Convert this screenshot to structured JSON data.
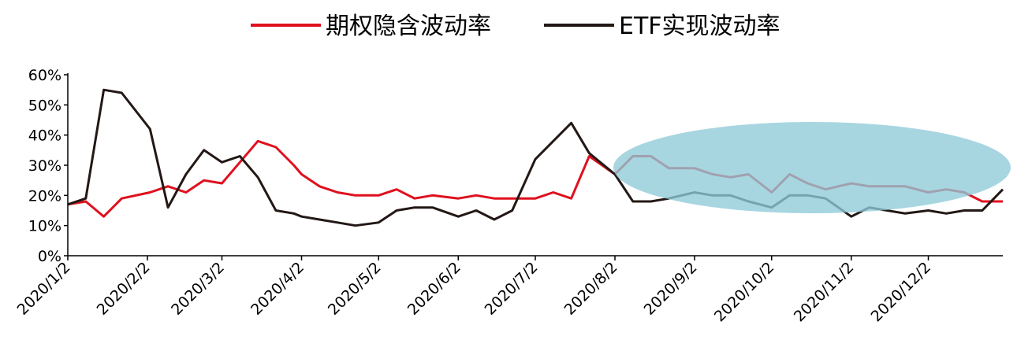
{
  "chart_data": {
    "type": "line",
    "title": "",
    "xlabel": "",
    "ylabel": "",
    "x": [
      "2020/1/2",
      "2020/1/9",
      "2020/1/16",
      "2020/1/23",
      "2020/2/3",
      "2020/2/10",
      "2020/2/17",
      "2020/2/24",
      "2020/3/2",
      "2020/3/9",
      "2020/3/16",
      "2020/3/23",
      "2020/3/30",
      "2020/4/2",
      "2020/4/9",
      "2020/4/16",
      "2020/4/23",
      "2020/5/2",
      "2020/5/9",
      "2020/5/16",
      "2020/5/23",
      "2020/6/2",
      "2020/6/9",
      "2020/6/16",
      "2020/6/23",
      "2020/7/2",
      "2020/7/9",
      "2020/7/16",
      "2020/7/23",
      "2020/8/2",
      "2020/8/9",
      "2020/8/16",
      "2020/8/23",
      "2020/9/2",
      "2020/9/9",
      "2020/9/16",
      "2020/9/23",
      "2020/10/2",
      "2020/10/9",
      "2020/10/16",
      "2020/10/23",
      "2020/11/2",
      "2020/11/9",
      "2020/11/16",
      "2020/11/23",
      "2020/12/2",
      "2020/12/9",
      "2020/12/16",
      "2020/12/23",
      "2020/12/31"
    ],
    "series": [
      {
        "name": "期权隐含波动率",
        "color": "#e0101e",
        "values": [
          17,
          18,
          13,
          19,
          21,
          23,
          21,
          25,
          24,
          31,
          38,
          36,
          30,
          27,
          23,
          21,
          20,
          20,
          22,
          19,
          20,
          19,
          20,
          19,
          19,
          19,
          21,
          19,
          33,
          27,
          33,
          33,
          29,
          29,
          27,
          26,
          27,
          21,
          27,
          24,
          22,
          24,
          23,
          23,
          23,
          21,
          22,
          21,
          18,
          18
        ]
      },
      {
        "name": "ETF实现波动率",
        "color": "#231815",
        "values": [
          17,
          19,
          55,
          54,
          42,
          16,
          27,
          35,
          31,
          33,
          26,
          15,
          14,
          13,
          12,
          11,
          10,
          11,
          15,
          16,
          16,
          13,
          15,
          12,
          15,
          32,
          38,
          44,
          34,
          27,
          18,
          18,
          19,
          21,
          20,
          20,
          18,
          16,
          20,
          20,
          19,
          13,
          16,
          15,
          14,
          15,
          14,
          15,
          15,
          22
        ]
      }
    ],
    "x_tick_labels": [
      "2020/1/2",
      "2020/2/2",
      "2020/3/2",
      "2020/4/2",
      "2020/5/2",
      "2020/6/2",
      "2020/7/2",
      "2020/8/2",
      "2020/9/2",
      "2020/10/2",
      "2020/11/2",
      "2020/12/2"
    ],
    "y_tick_labels": [
      "0%",
      "10%",
      "20%",
      "30%",
      "40%",
      "50%",
      "60%"
    ],
    "ylim": [
      0,
      60
    ],
    "grid": false,
    "legend_position": "top-center",
    "highlight_color": "#8ecbd9"
  }
}
